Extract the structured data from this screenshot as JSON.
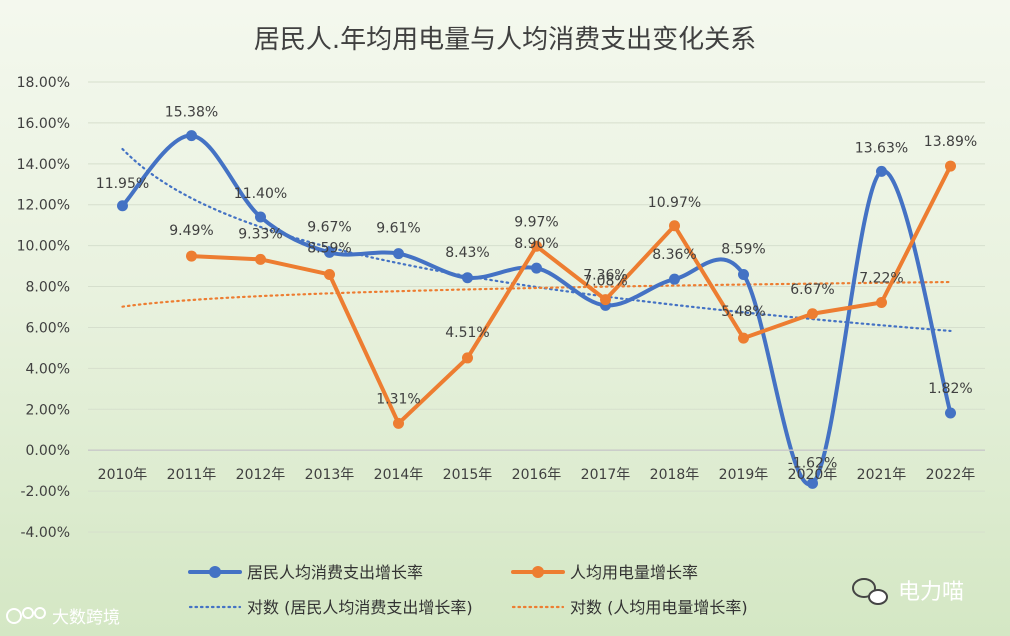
{
  "chart_data": {
    "type": "line",
    "title": "居民人.年均用电量与人均消费支出变化关系",
    "categories": [
      "2010年",
      "2011年",
      "2012年",
      "2013年",
      "2014年",
      "2015年",
      "2016年",
      "2017年",
      "2018年",
      "2019年",
      "2020年",
      "2021年",
      "2022年"
    ],
    "ylim": [
      -4,
      18
    ],
    "ytick_step": 2,
    "ytick_labels": [
      "-4.00%",
      "-2.00%",
      "0.00%",
      "2.00%",
      "4.00%",
      "6.00%",
      "8.00%",
      "10.00%",
      "12.00%",
      "14.00%",
      "16.00%",
      "18.00%"
    ],
    "grid": true,
    "series": [
      {
        "name": "居民人均消费支出增长率",
        "color": "#4472c4",
        "style": "smooth",
        "values": [
          11.95,
          15.38,
          11.4,
          9.67,
          9.61,
          8.43,
          8.9,
          7.08,
          8.36,
          8.59,
          -1.62,
          13.63,
          1.82
        ],
        "labels": [
          "11.95%",
          "15.38%",
          "11.40%",
          "9.67%",
          "9.61%",
          "8.43%",
          "8.90%",
          "7.08%",
          "8.36%",
          "8.59%",
          "-1.62%",
          "13.63%",
          "1.82%"
        ]
      },
      {
        "name": "人均用电量增长率",
        "color": "#ed7d31",
        "style": "straight",
        "values": [
          null,
          9.49,
          9.33,
          8.59,
          1.31,
          4.51,
          9.97,
          7.36,
          10.97,
          5.48,
          6.67,
          7.22,
          13.89
        ],
        "labels": [
          "",
          "9.49%",
          "9.33%",
          "8.59%",
          "1.31%",
          "4.51%",
          "9.97%",
          "7.36%",
          "10.97%",
          "5.48%",
          "6.67%",
          "7.22%",
          "13.89%"
        ]
      }
    ],
    "trendlines": [
      {
        "name": "对数 (居民人均消费支出增长率)",
        "type": "logarithmic",
        "of_series": 0,
        "color": "#4472c4"
      },
      {
        "name": "对数 (人均用电量增长率)",
        "type": "logarithmic",
        "of_series": 1,
        "color": "#ed7d31"
      }
    ],
    "legend": "bottom"
  },
  "watermarks": {
    "left": "大数跨境",
    "right": "电力喵"
  }
}
